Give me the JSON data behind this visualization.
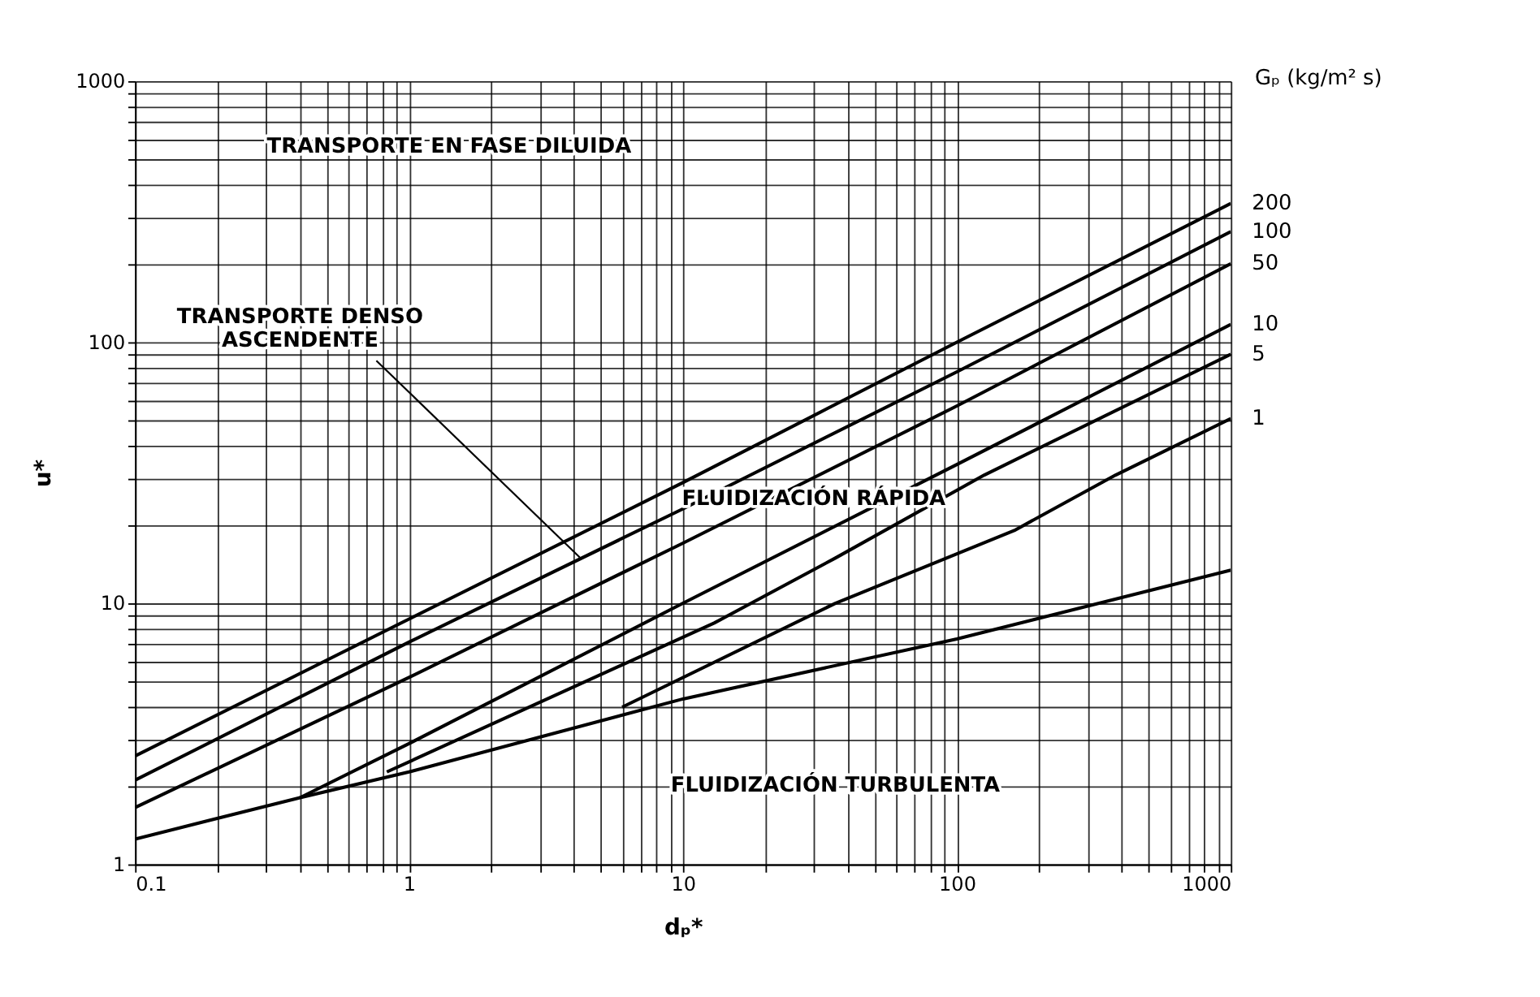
{
  "chart_data": {
    "type": "line",
    "xlabel": "dₚ*",
    "ylabel": "u*",
    "legend_title": "Gₚ (kg/m² s)",
    "log": "xy",
    "grid": true,
    "legend": false,
    "marker": "none",
    "line_style": "solid",
    "xlim": [
      0.1,
      1000
    ],
    "ylim": [
      1,
      1000
    ],
    "xticks": [
      0.1,
      {
        "value": 0.2,
        "label": null
      },
      {
        "value": 0.3,
        "label": null
      },
      {
        "value": 0.4,
        "label": null
      },
      {
        "value": 0.5,
        "label": null
      },
      {
        "value": 0.6,
        "label": null
      },
      {
        "value": 0.7,
        "label": null
      },
      {
        "value": 0.8,
        "label": null
      },
      {
        "value": 0.9,
        "label": null
      },
      1,
      {
        "value": 2,
        "label": null
      },
      {
        "value": 3,
        "label": null
      },
      {
        "value": 4,
        "label": null
      },
      {
        "value": 5,
        "label": null
      },
      {
        "value": 6,
        "label": null
      },
      {
        "value": 7,
        "label": null
      },
      {
        "value": 8,
        "label": null
      },
      {
        "value": 9,
        "label": null
      },
      10,
      {
        "value": 20,
        "label": null
      },
      {
        "value": 30,
        "label": null
      },
      {
        "value": 40,
        "label": null
      },
      {
        "value": 50,
        "label": null
      },
      {
        "value": 60,
        "label": null
      },
      {
        "value": 70,
        "label": null
      },
      {
        "value": 80,
        "label": null
      },
      {
        "value": 90,
        "label": null
      },
      100,
      {
        "value": 200,
        "label": null
      },
      {
        "value": 300,
        "label": null
      },
      {
        "value": 400,
        "label": null
      },
      {
        "value": 500,
        "label": null
      },
      {
        "value": 600,
        "label": null
      },
      {
        "value": 700,
        "label": null
      },
      {
        "value": 800,
        "label": null
      },
      {
        "value": 900,
        "label": null
      },
      1000
    ],
    "yticks": [
      1,
      {
        "value": 2,
        "label": null
      },
      {
        "value": 3,
        "label": null
      },
      {
        "value": 4,
        "label": null
      },
      {
        "value": 5,
        "label": null
      },
      {
        "value": 6,
        "label": null
      },
      {
        "value": 7,
        "label": null
      },
      {
        "value": 8,
        "label": null
      },
      {
        "value": 9,
        "label": null
      },
      10,
      {
        "value": 20,
        "label": null
      },
      {
        "value": 30,
        "label": null
      },
      {
        "value": 40,
        "label": null
      },
      {
        "value": 50,
        "label": null
      },
      {
        "value": 60,
        "label": null
      },
      {
        "value": 70,
        "label": null
      },
      {
        "value": 80,
        "label": null
      },
      {
        "value": 90,
        "label": null
      },
      100,
      {
        "value": 200,
        "label": null
      },
      {
        "value": 300,
        "label": null
      },
      {
        "value": 400,
        "label": null
      },
      {
        "value": 500,
        "label": null
      },
      {
        "value": 600,
        "label": null
      },
      {
        "value": 700,
        "label": null
      },
      {
        "value": 800,
        "label": null
      },
      {
        "value": 900,
        "label": null
      },
      1000
    ],
    "annotations": [
      "TRANSPORTE EN FASE DILUIDA",
      {
        "text": "TRANSPORTE DENSO\nASCENDENTE",
        "x": 4.2,
        "y": 15
      },
      "FLUIDIZACIÓN RÁPIDA",
      "FLUIDIZACIÓN TURBULENTA"
    ],
    "series": [
      {
        "name": "200",
        "color": "#000000",
        "x": [
          0.1,
          1,
          10,
          100,
          1000
        ],
        "values": [
          2.6,
          8.7,
          29,
          100,
          340
        ]
      },
      {
        "name": "100",
        "color": "#000000",
        "x": [
          0.1,
          1,
          10,
          100,
          1000
        ],
        "values": [
          2.1,
          7.1,
          23,
          77,
          265
        ]
      },
      {
        "name": "50",
        "color": "#000000",
        "x": [
          0.1,
          1,
          10,
          100,
          1000
        ],
        "values": [
          1.65,
          5.2,
          17,
          57,
          200
        ]
      },
      {
        "name": "10",
        "color": "#000000",
        "x": [
          0.4,
          1,
          10,
          100,
          1000
        ],
        "values": [
          1.8,
          2.9,
          10,
          34,
          117
        ]
      },
      {
        "name": "5",
        "color": "#000000",
        "x": [
          0.83,
          13,
          36,
          126,
          1000
        ],
        "values": [
          2.26,
          8.4,
          14.9,
          31,
          90
        ]
      },
      {
        "name": "1",
        "color": "#000000",
        "x": [
          6,
          36,
          162,
          380,
          1000
        ],
        "values": [
          4.0,
          10,
          19,
          31,
          51
        ]
      },
      {
        "color": "#000000",
        "x": [
          0.1,
          0.4,
          1,
          10,
          100,
          1000
        ],
        "values": [
          1.25,
          1.8,
          2.26,
          4.3,
          7.3,
          13.4
        ]
      }
    ]
  }
}
